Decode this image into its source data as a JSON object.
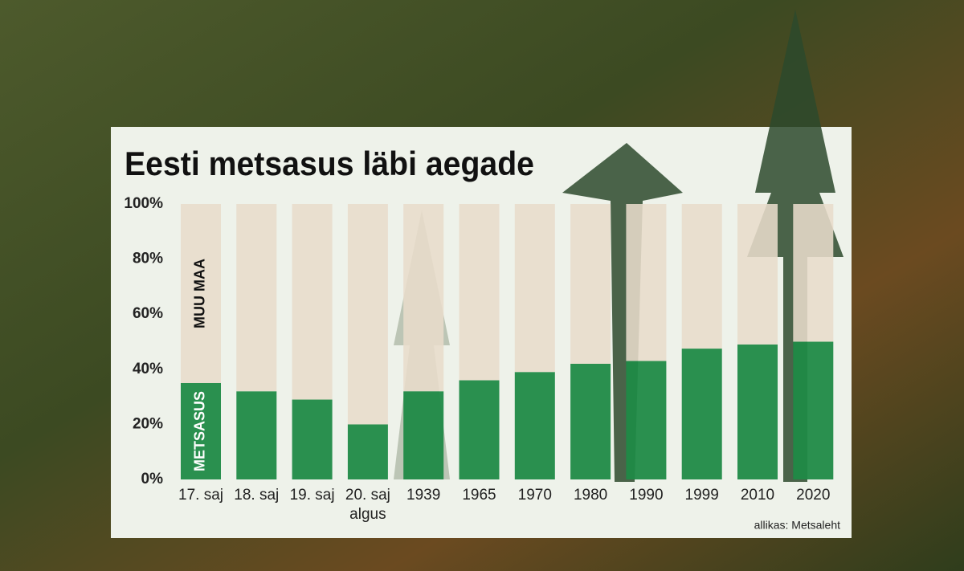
{
  "chart_data": {
    "type": "stacked-bar",
    "title": "Eesti metsasus läbi aegade",
    "categories": [
      "17. saj",
      "18. saj",
      "19. saj",
      "20. saj algus",
      "1939",
      "1965",
      "1970",
      "1980",
      "1990",
      "1999",
      "2010",
      "2020"
    ],
    "series": [
      {
        "name": "METSASUS",
        "color": "#1f8a47",
        "values": [
          35,
          32,
          29,
          20,
          32,
          36,
          39,
          42,
          43,
          47.5,
          49,
          50
        ]
      },
      {
        "name": "MUU MAA",
        "color": "#e8dccb",
        "values": [
          65,
          68,
          71,
          80,
          68,
          64,
          61,
          58,
          57,
          52.5,
          51,
          50
        ]
      }
    ],
    "ylim": [
      0,
      100
    ],
    "yticks": [
      {
        "value": 0,
        "label": "0%"
      },
      {
        "value": 20,
        "label": "20%"
      },
      {
        "value": 40,
        "label": "40%"
      },
      {
        "value": 60,
        "label": "60%"
      },
      {
        "value": 80,
        "label": "80%"
      },
      {
        "value": 100,
        "label": "100%"
      }
    ],
    "source": "allikas: Metsaleht"
  }
}
